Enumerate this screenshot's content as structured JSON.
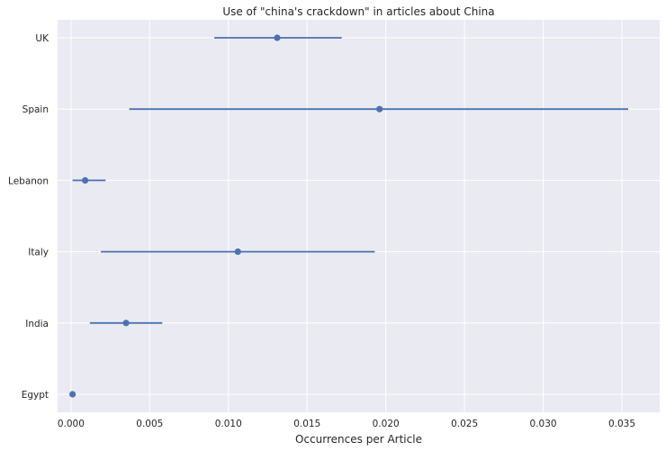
{
  "chart_data": {
    "type": "scatter",
    "title": "Use of \"china's crackdown\" in articles about China",
    "xlabel": "Occurrences per Article",
    "ylabel": "",
    "xlim": [
      -0.00085,
      0.0374
    ],
    "xticks": [
      0.0,
      0.005,
      0.01,
      0.015,
      0.02,
      0.025,
      0.03,
      0.035
    ],
    "xtick_labels": [
      "0.000",
      "0.005",
      "0.010",
      "0.015",
      "0.020",
      "0.025",
      "0.030",
      "0.035"
    ],
    "grid": true,
    "categories": [
      "UK",
      "Spain",
      "Lebanon",
      "Italy",
      "India",
      "Egypt"
    ],
    "points": [
      {
        "category": "UK",
        "value": 0.0131,
        "ci_low": 0.0091,
        "ci_high": 0.0172
      },
      {
        "category": "Spain",
        "value": 0.0196,
        "ci_low": 0.0037,
        "ci_high": 0.0354
      },
      {
        "category": "Lebanon",
        "value": 0.0009,
        "ci_low": 0.0001,
        "ci_high": 0.0022
      },
      {
        "category": "Italy",
        "value": 0.0106,
        "ci_low": 0.0019,
        "ci_high": 0.0193
      },
      {
        "category": "India",
        "value": 0.0035,
        "ci_low": 0.0012,
        "ci_high": 0.0058
      },
      {
        "category": "Egypt",
        "value": 0.0001,
        "ci_low": 0.0001,
        "ci_high": 0.0001
      }
    ],
    "colors": {
      "marker": "#4c72b0",
      "background": "#eaeaf2",
      "grid": "#ffffff",
      "text": "#262626"
    }
  }
}
